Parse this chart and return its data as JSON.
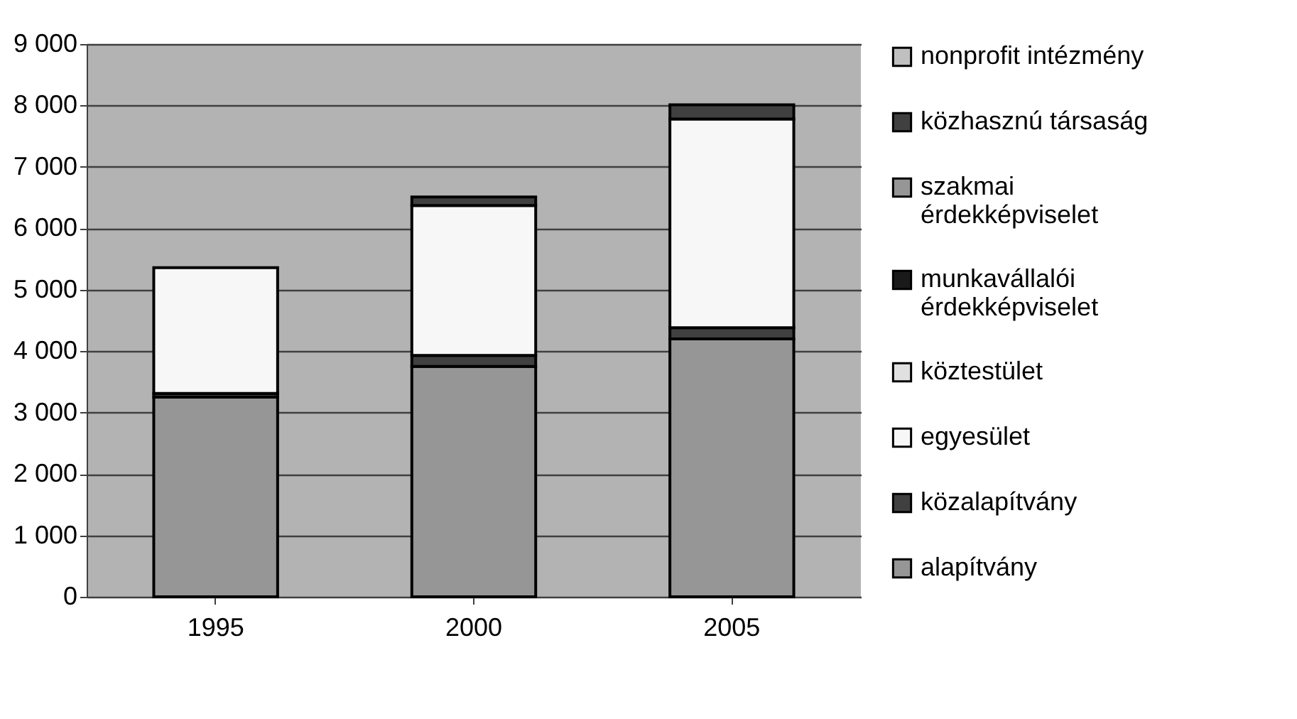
{
  "chart_data": {
    "type": "bar",
    "stacked": true,
    "categories": [
      "1995",
      "2000",
      "2005"
    ],
    "series": [
      {
        "name": "alapítvány",
        "color": "#969696",
        "values": [
          3250,
          3750,
          4200
        ]
      },
      {
        "name": "közalapítvány",
        "color": "#404040",
        "values": [
          60,
          180,
          180
        ]
      },
      {
        "name": "egyesület",
        "color": "#f7f7f7",
        "values": [
          2050,
          2440,
          3400
        ]
      },
      {
        "name": "köztestület",
        "color": "#e0e0e0",
        "values": [
          null,
          null,
          null
        ]
      },
      {
        "name": "munkavállalói érdekképviselet",
        "color": "#1a1a1a",
        "values": [
          null,
          null,
          null
        ]
      },
      {
        "name": "szakmai érdekképviselet",
        "color": "#969696",
        "values": [
          null,
          null,
          null
        ]
      },
      {
        "name": "közhasznú társaság",
        "color": "#404040",
        "values": [
          null,
          140,
          230
        ]
      },
      {
        "name": "nonprofit intézmény",
        "color": "#c0c0c0",
        "values": [
          null,
          null,
          null
        ]
      }
    ],
    "ylim": [
      0,
      9000
    ],
    "yticks": [
      {
        "value": 0,
        "label": "0"
      },
      {
        "value": 1000,
        "label": "1 000"
      },
      {
        "value": 2000,
        "label": "2 000"
      },
      {
        "value": 3000,
        "label": "3 000"
      },
      {
        "value": 4000,
        "label": "4 000"
      },
      {
        "value": 5000,
        "label": "5 000"
      },
      {
        "value": 6000,
        "label": "6 000"
      },
      {
        "value": 7000,
        "label": "7 000"
      },
      {
        "value": 8000,
        "label": "8 000"
      },
      {
        "value": 9000,
        "label": "9 000"
      }
    ],
    "grid": "y",
    "legend": "right"
  }
}
